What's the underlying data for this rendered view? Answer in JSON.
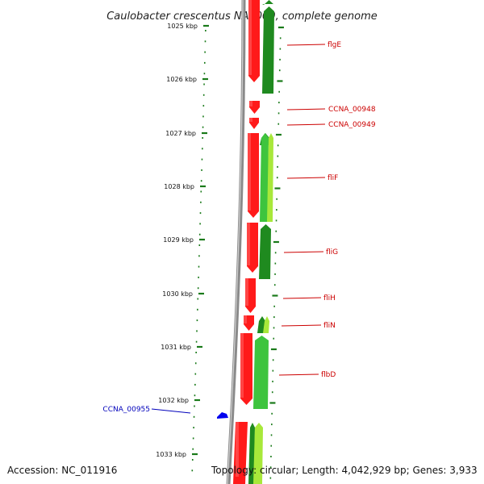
{
  "title": "Caulobacter crescentus NA1000, complete genome",
  "footer": {
    "accession": "Accession: NC_011916",
    "summary": "Topology: circular; Length: 4,042,929 bp; Genes: 3,933"
  },
  "colors": {
    "backbone": "#8a8a8a",
    "tick": "#1a7a1a",
    "label_red": "#cc0000",
    "label_blue": "#0000bb",
    "forward": "#ff1a1a",
    "reverse_dark": "#1f8a1f",
    "reverse_mid": "#3ec43e",
    "reverse_light": "#a8e83a",
    "marker": "#0000ee"
  },
  "ticks": [
    {
      "label": "1025 kbp"
    },
    {
      "label": "1026 kbp"
    },
    {
      "label": "1027 kbp"
    },
    {
      "label": "1028 kbp"
    },
    {
      "label": "1029 kbp"
    },
    {
      "label": "1030 kbp"
    },
    {
      "label": "1031 kbp"
    },
    {
      "label": "1032 kbp"
    },
    {
      "label": "1033 kbp"
    }
  ],
  "genes": [
    {
      "label": "flgE",
      "color": "red"
    },
    {
      "label": "CCNA_00948",
      "color": "red"
    },
    {
      "label": "CCNA_00949",
      "color": "red"
    },
    {
      "label": "fliF",
      "color": "red"
    },
    {
      "label": "fliG",
      "color": "red"
    },
    {
      "label": "fliH",
      "color": "red"
    },
    {
      "label": "fliN",
      "color": "red"
    },
    {
      "label": "flbD",
      "color": "red"
    },
    {
      "label": "CCNA_00955",
      "color": "blue"
    }
  ]
}
